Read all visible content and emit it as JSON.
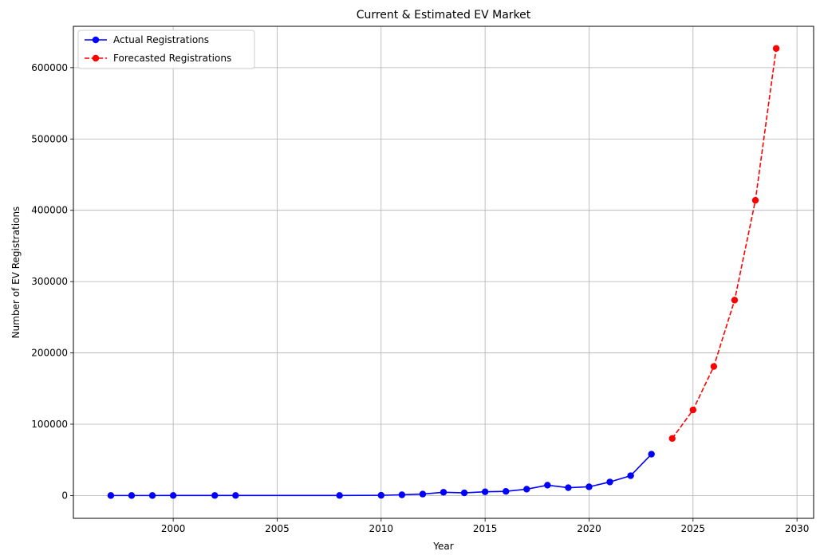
{
  "chart_data": {
    "type": "line",
    "title": "Current & Estimated EV Market",
    "xlabel": "Year",
    "ylabel": "Number of EV Registrations",
    "xlim": [
      1995.2,
      2030.8
    ],
    "ylim": [
      -32000,
      658000
    ],
    "xticks": [
      2000,
      2005,
      2010,
      2015,
      2020,
      2025,
      2030
    ],
    "yticks": [
      0,
      100000,
      200000,
      300000,
      400000,
      500000,
      600000
    ],
    "grid": true,
    "legend_position": "top-left",
    "series": [
      {
        "name": "Actual Registrations",
        "color": "#0000ff",
        "line_style": "solid",
        "marker": "circle",
        "x": [
          1997,
          1998,
          1999,
          2000,
          2002,
          2003,
          2008,
          2010,
          2011,
          2012,
          2013,
          2014,
          2015,
          2016,
          2017,
          2018,
          2019,
          2020,
          2021,
          2022,
          2023
        ],
        "y": [
          0,
          0,
          0,
          100,
          100,
          100,
          100,
          300,
          1000,
          2000,
          4600,
          3700,
          5200,
          5800,
          8900,
          14500,
          11000,
          12200,
          19000,
          27800,
          58000
        ]
      },
      {
        "name": "Forecasted Registrations",
        "color": "#ff0000",
        "line_style": "dashed",
        "marker": "circle",
        "x": [
          2024,
          2025,
          2026,
          2027,
          2028,
          2029
        ],
        "y": [
          80000,
          120000,
          181000,
          274000,
          414000,
          627000
        ]
      }
    ]
  }
}
